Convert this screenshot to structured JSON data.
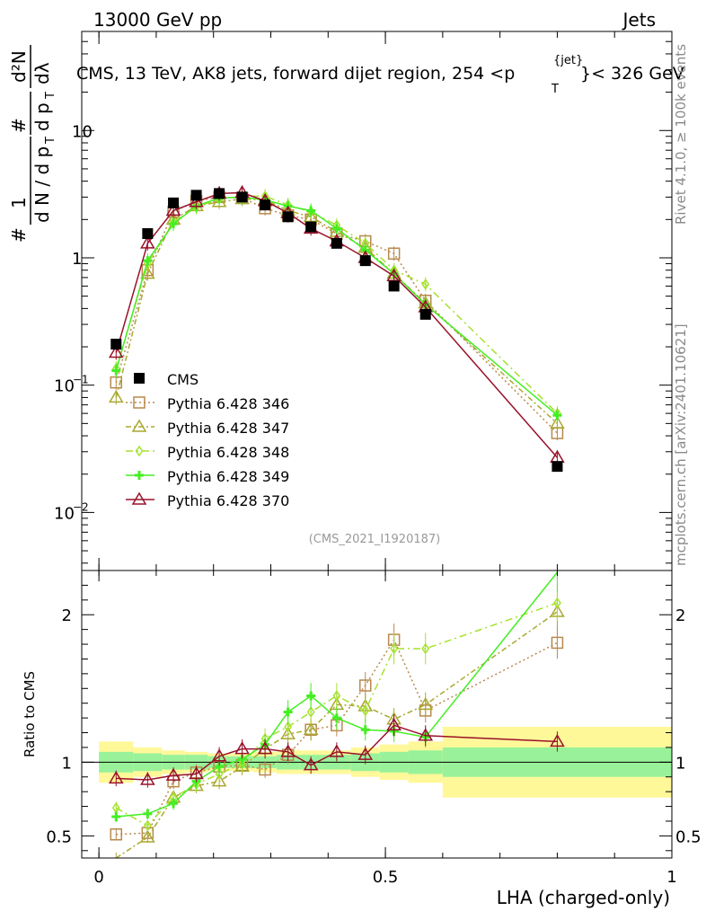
{
  "header": {
    "left": "13000 GeV pp",
    "right": "Jets",
    "title_main": "CMS, 13 TeV, AK8 jets, forward dijet region, 254 <p",
    "title_sup": "{jet}",
    "title_sub": "T",
    "title_tail": "}< 326 GeV"
  },
  "side": {
    "rivet": "Rivet 4.1.0, ≥ 100k events",
    "mcplots": "mcplots.cern.ch [arXiv:2401.10621]"
  },
  "watermark": "(CMS_2021_I1920187)",
  "ylabel_main": {
    "hash1": "#",
    "one": "1",
    "dn": "d N / d p",
    "t1": "T",
    "hash2": "#",
    "dp": "d p",
    "t2": "T",
    "d2n": "d²N",
    "dl": "dλ"
  },
  "ylabel_ratio": "Ratio to CMS",
  "xlabel": "LHA (charged-only)",
  "colors": {
    "cms": "#000000",
    "p346": "#b8894c",
    "p347": "#a9a830",
    "p348": "#a6e22e",
    "p349": "#44ee22",
    "p370": "#99112a",
    "band_inner": "#99f299",
    "band_outer": "#fff899"
  },
  "chart_data": {
    "type": "scatter",
    "x_range": [
      -0.03,
      1.0
    ],
    "y_range_log": [
      0.0035,
      60
    ],
    "ratio_range": [
      0.35,
      2.3
    ],
    "x_ticks": [
      {
        "v": 0,
        "label": "0"
      },
      {
        "v": 0.5,
        "label": "0.5"
      },
      {
        "v": 1,
        "label": "1"
      }
    ],
    "y_ticks": [
      {
        "v": 0.01,
        "label": "10",
        "exp": "−2"
      },
      {
        "v": 0.1,
        "label": "10",
        "exp": "−1"
      },
      {
        "v": 1,
        "label": "1",
        "exp": ""
      },
      {
        "v": 10,
        "label": "10",
        "exp": ""
      }
    ],
    "ratio_ticks": [
      {
        "v": 0.5,
        "label": "0.5"
      },
      {
        "v": 1,
        "label": "1"
      },
      {
        "v": 2,
        "label": "2"
      }
    ],
    "x": [
      0.03,
      0.085,
      0.13,
      0.17,
      0.21,
      0.25,
      0.29,
      0.33,
      0.37,
      0.415,
      0.465,
      0.515,
      0.57,
      0.8
    ],
    "bin_edges": [
      0,
      0.06,
      0.11,
      0.15,
      0.19,
      0.23,
      0.27,
      0.31,
      0.35,
      0.39,
      0.44,
      0.49,
      0.54,
      0.6,
      1.0
    ],
    "data": {
      "name": "CMS",
      "values": [
        0.21,
        1.55,
        2.7,
        3.1,
        3.2,
        3.0,
        2.6,
        2.1,
        1.75,
        1.3,
        0.95,
        0.6,
        0.36,
        0.023
      ],
      "band_inner": [
        0.07,
        0.06,
        0.05,
        0.05,
        0.04,
        0.04,
        0.04,
        0.05,
        0.05,
        0.05,
        0.06,
        0.07,
        0.08,
        0.1
      ],
      "band_outer": [
        0.14,
        0.1,
        0.08,
        0.07,
        0.06,
        0.06,
        0.07,
        0.08,
        0.08,
        0.08,
        0.1,
        0.12,
        0.14,
        0.24
      ]
    },
    "series": [
      {
        "name": "Pythia 6.428 346",
        "color_key": "p346",
        "marker": "square",
        "dash": "2,3",
        "values": [
          0.105,
          0.8,
          2.3,
          2.8,
          3.0,
          2.95,
          2.45,
          2.15,
          2.0,
          1.55,
          1.35,
          1.08,
          0.46,
          0.042
        ],
        "ratio": [
          0.51,
          0.52,
          0.87,
          0.93,
          0.97,
          0.98,
          0.95,
          1.05,
          1.22,
          1.25,
          1.52,
          1.83,
          1.35,
          1.81
        ]
      },
      {
        "name": "Pythia 6.428 347",
        "color_key": "p347",
        "marker": "triangle",
        "dash": "6,3,2,3",
        "values": [
          0.08,
          0.75,
          2.0,
          2.55,
          2.75,
          2.9,
          2.85,
          2.35,
          2.1,
          1.6,
          1.2,
          0.75,
          0.44,
          0.05
        ],
        "ratio": [
          0.3,
          0.49,
          0.76,
          0.84,
          0.87,
          0.97,
          1.09,
          1.19,
          1.22,
          1.39,
          1.38,
          1.29,
          1.39,
          2.02
        ]
      },
      {
        "name": "Pythia 6.428 348",
        "color_key": "p348",
        "marker": "diamond",
        "dash": "8,4,2,4",
        "values": [
          0.135,
          0.9,
          1.9,
          2.5,
          2.9,
          3.05,
          3.05,
          2.6,
          2.3,
          1.8,
          1.3,
          0.8,
          0.62,
          0.06
        ],
        "ratio": [
          0.69,
          0.57,
          0.76,
          0.85,
          0.92,
          0.99,
          1.16,
          1.24,
          1.34,
          1.45,
          1.35,
          1.77,
          1.77,
          2.08
        ]
      },
      {
        "name": "Pythia 6.428 349",
        "color_key": "p349",
        "marker": "cross",
        "dash": "",
        "values": [
          0.13,
          0.95,
          1.85,
          2.55,
          2.95,
          3.0,
          2.85,
          2.55,
          2.35,
          1.7,
          1.15,
          0.75,
          0.43,
          0.058
        ],
        "ratio": [
          0.63,
          0.65,
          0.72,
          0.87,
          0.97,
          1.02,
          1.12,
          1.34,
          1.45,
          1.3,
          1.22,
          1.21,
          1.17,
          2.3
        ]
      },
      {
        "name": "Pythia 6.428 370",
        "color_key": "p370",
        "marker": "triangle",
        "dash": "",
        "values": [
          0.18,
          1.3,
          2.35,
          2.75,
          3.2,
          3.25,
          2.8,
          2.25,
          1.7,
          1.35,
          1.0,
          0.72,
          0.41,
          0.027
        ],
        "ratio": [
          0.89,
          0.88,
          0.91,
          0.92,
          1.04,
          1.09,
          1.09,
          1.07,
          0.98,
          1.07,
          1.05,
          1.25,
          1.18,
          1.14
        ]
      }
    ]
  }
}
